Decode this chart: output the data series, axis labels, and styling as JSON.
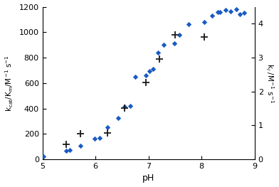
{
  "title": "",
  "xlabel": "pH",
  "ylabel_left": "k$_\\mathrm{cat}$/K$_\\mathrm{m}$/M$^{-1}$ s$^{-1}$",
  "ylabel_right": "k$_i$ /M$^{-1}$ s$^{-1}$",
  "xlim": [
    5,
    9
  ],
  "ylim_left": [
    0,
    1200
  ],
  "ylim_right": [
    0,
    4.5
  ],
  "xticks": [
    5,
    6,
    7,
    8,
    9
  ],
  "yticks_left": [
    0,
    200,
    400,
    600,
    800,
    1000,
    1200
  ],
  "yticks_right": [
    0,
    1,
    2,
    3,
    4
  ],
  "diamond_color": "#1a5bc4",
  "plus_color": "#1a1a1a",
  "diamond_x": [
    5.02,
    5.45,
    5.52,
    5.72,
    5.98,
    6.08,
    6.22,
    6.42,
    6.55,
    6.65,
    6.75,
    6.95,
    7.02,
    7.08,
    7.18,
    7.28,
    7.48,
    7.58,
    7.75,
    8.05,
    8.2,
    8.3,
    8.35,
    8.45,
    8.55,
    8.65,
    8.72,
    8.8
  ],
  "diamond_y": [
    20,
    65,
    75,
    105,
    160,
    170,
    250,
    325,
    415,
    420,
    650,
    660,
    695,
    710,
    840,
    900,
    910,
    980,
    1065,
    1080,
    1130,
    1160,
    1160,
    1175,
    1165,
    1180,
    1140,
    1155
  ],
  "plus_x": [
    5.45,
    5.72,
    6.22,
    6.55,
    6.95,
    7.2,
    7.5,
    8.05
  ],
  "plus_y_right": [
    0.44,
    0.75,
    0.78,
    1.52,
    2.27,
    2.95,
    3.68,
    3.61
  ],
  "background_color": "#ffffff"
}
